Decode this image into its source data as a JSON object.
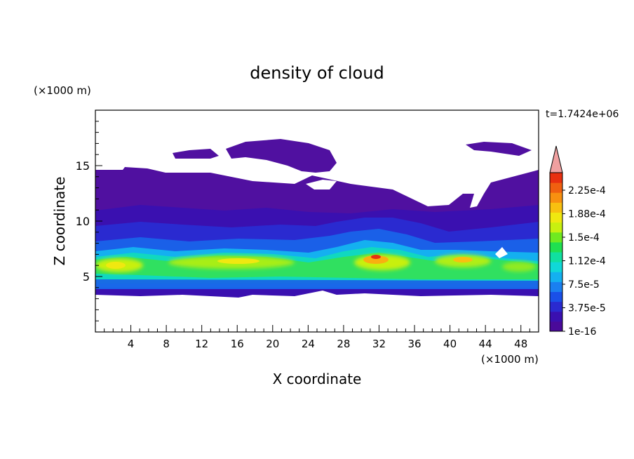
{
  "chart_data": {
    "type": "heatmap",
    "title": "density of cloud",
    "xlabel": "X coordinate",
    "ylabel": "Z coordinate",
    "x_unit": "(×1000 m)",
    "y_unit": "(×1000 m)",
    "time_label": "t=1.7424e+06",
    "xlim": [
      0,
      50
    ],
    "ylim": [
      0,
      20
    ],
    "x_ticks": [
      "4",
      "8",
      "12",
      "16",
      "20",
      "24",
      "28",
      "32",
      "36",
      "40",
      "44",
      "48"
    ],
    "y_ticks": [
      "5",
      "10",
      "15"
    ],
    "colorbar": {
      "labels": [
        "2.25e-4",
        "1.88e-4",
        "1.5e-4",
        "1.12e-4",
        "7.5e-5",
        "3.75e-5",
        "1e-16"
      ],
      "colors": [
        "#4a0a9a",
        "#3a10b0",
        "#2a2ad0",
        "#1a50e8",
        "#1a80f0",
        "#14b0f0",
        "#10d8d8",
        "#10e0a0",
        "#20e050",
        "#70ea20",
        "#c8f010",
        "#f0e810",
        "#f8c010",
        "#f89010",
        "#f06010",
        "#e83010"
      ],
      "extend_color": "#f0a0a0"
    },
    "dense_layer_peaks": [
      {
        "x": 6,
        "z": 6.0
      },
      {
        "x": 20,
        "z": 6.8
      },
      {
        "x": 32,
        "z": 6.8
      },
      {
        "x": 42,
        "z": 6.2
      }
    ]
  }
}
